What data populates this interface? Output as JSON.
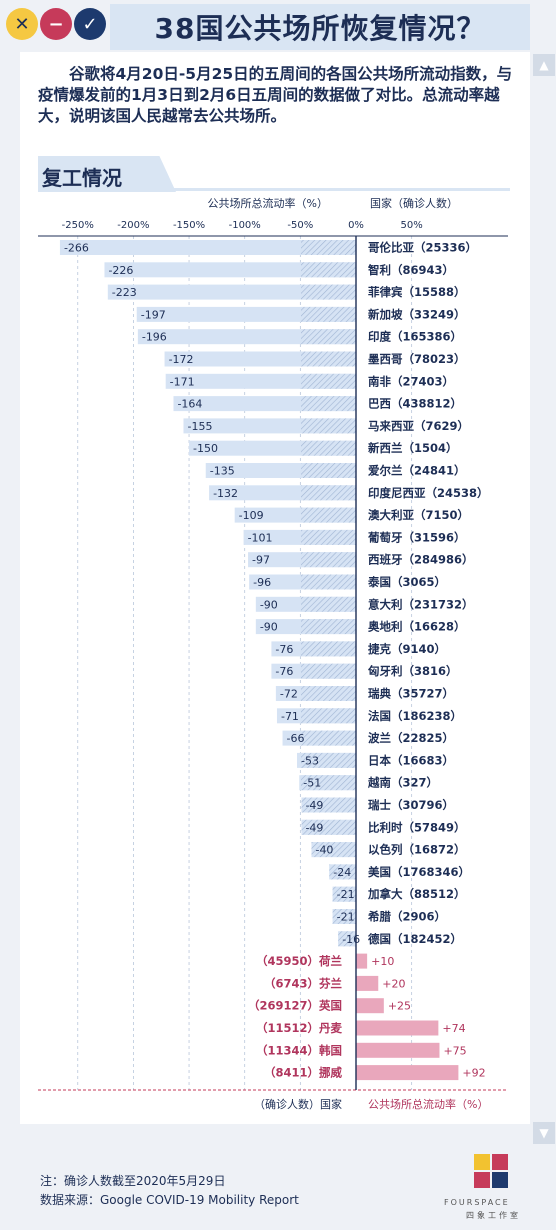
{
  "title": "38国公共场所恢复情况？",
  "intro": "谷歌将4月20日-5月25日的五周间的各国公共场所流动指数，与疫情爆发前的1月3日到2月6日五周间的数据做了对比。总流动率越大，说明该国人民越常去公共场所。",
  "section_title": "复工情况",
  "colors": {
    "negative_bar": "#d6e3f4",
    "positive_bar": "#e9a7bc",
    "text": "#1d2e55",
    "positive_text": "#b0355d"
  },
  "chart_data": {
    "type": "bar",
    "orientation": "horizontal",
    "top_axis_label": "公共场所总流动率（%）",
    "top_country_label": "国家（确诊人数）",
    "bottom_axis_label": "公共场所总流动率（%）",
    "bottom_country_label": "（确诊人数）国家",
    "xlim": [
      -275,
      100
    ],
    "ticks": [
      "-250%",
      "-200%",
      "-150%",
      "-100%",
      "-50%",
      "0%",
      "50%"
    ],
    "tick_values": [
      -250,
      -200,
      -150,
      -100,
      -50,
      0,
      50
    ],
    "countries": [
      "哥伦比亚",
      "智利",
      "菲律宾",
      "新加坡",
      "印度",
      "墨西哥",
      "南非",
      "巴西",
      "马来西亚",
      "新西兰",
      "爱尔兰",
      "印度尼西亚",
      "澳大利亚",
      "葡萄牙",
      "西班牙",
      "泰国",
      "意大利",
      "奥地利",
      "捷克",
      "匈牙利",
      "瑞典",
      "法国",
      "波兰",
      "日本",
      "越南",
      "瑞士",
      "比利时",
      "以色列",
      "美国",
      "加拿大",
      "希腊",
      "德国",
      "荷兰",
      "芬兰",
      "英国",
      "丹麦",
      "韩国",
      "挪威"
    ],
    "cases": [
      "25336",
      "86943",
      "15588",
      "33249",
      "165386",
      "78023",
      "27403",
      "438812",
      "7629",
      "1504",
      "24841",
      "24538",
      "7150",
      "31596",
      "284986",
      "3065",
      "231732",
      "16628",
      "9140",
      "3816",
      "35727",
      "186238",
      "22825",
      "16683",
      "327",
      "30796",
      "57849",
      "16872",
      "1768346",
      "88512",
      "2906",
      "182452",
      "45950",
      "6743",
      "269127",
      "11512",
      "11344",
      "8411"
    ],
    "values": [
      -266,
      -226,
      -223,
      -197,
      -196,
      -172,
      -171,
      -164,
      -155,
      -150,
      -135,
      -132,
      -109,
      -101,
      -97,
      -96,
      -90,
      -90,
      -76,
      -76,
      -72,
      -71,
      -66,
      -53,
      -51,
      -49,
      -49,
      -40,
      -24,
      -21,
      -21,
      -16,
      10,
      20,
      25,
      74,
      75,
      92
    ],
    "value_labels": [
      "-266",
      "-226",
      "-223",
      "-197",
      "-196",
      "-172",
      "-171",
      "-164",
      "-155",
      "-150",
      "-135",
      "-132",
      "-109",
      "-101",
      "-97",
      "-96",
      "-90",
      "-90",
      "-76",
      "-76",
      "-72",
      "-71",
      "-66",
      "-53",
      "-51",
      "-49",
      "-49",
      "-40",
      "-24",
      "-21",
      "-21",
      "-16",
      "+10",
      "+20",
      "+25",
      "+74",
      "+75",
      "+92"
    ]
  },
  "footer": {
    "note": "注：确诊人数截至2020年5月29日",
    "source": "数据来源：Google COVID-19 Mobility Report"
  },
  "brand": {
    "name": "FOURSPACE",
    "sub": "四象工作室"
  }
}
